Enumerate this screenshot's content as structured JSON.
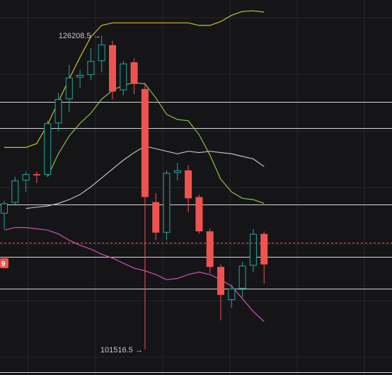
{
  "chart_data": {
    "type": "candlestick",
    "price_range": [
      99500,
      129000
    ],
    "colors": {
      "up": "#26a69a",
      "down": "#ef5350",
      "background": "#151518",
      "grid": "#26262b",
      "level_line": "#d9d9d9",
      "current_price_line": "#ef5350",
      "upper_band": "#c9c034",
      "short_ma": "#8bbf45",
      "mid_ma": "#bdbdbd",
      "lower_band": "#d44fb4"
    },
    "candles": [
      {
        "o": 112200,
        "h": 113200,
        "l": 111000,
        "c": 113000
      },
      {
        "o": 113050,
        "h": 115100,
        "l": 112900,
        "c": 114800
      },
      {
        "o": 114800,
        "h": 115500,
        "l": 113900,
        "c": 115300
      },
      {
        "o": 115300,
        "h": 115500,
        "l": 114600,
        "c": 115200
      },
      {
        "o": 115250,
        "h": 119500,
        "l": 115100,
        "c": 119300
      },
      {
        "o": 119300,
        "h": 121700,
        "l": 118700,
        "c": 121200
      },
      {
        "o": 121200,
        "h": 123900,
        "l": 120200,
        "c": 122900
      },
      {
        "o": 122900,
        "h": 123500,
        "l": 122100,
        "c": 123100
      },
      {
        "o": 123100,
        "h": 125200,
        "l": 122700,
        "c": 124200
      },
      {
        "o": 124200,
        "h": 126208.5,
        "l": 123300,
        "c": 125500
      },
      {
        "o": 125450,
        "h": 125800,
        "l": 121200,
        "c": 121800
      },
      {
        "o": 121900,
        "h": 124200,
        "l": 121500,
        "c": 124000
      },
      {
        "o": 124100,
        "h": 124400,
        "l": 121600,
        "c": 122400
      },
      {
        "o": 122000,
        "h": 122500,
        "l": 101516.5,
        "c": 113500
      },
      {
        "o": 113100,
        "h": 113800,
        "l": 110100,
        "c": 110700
      },
      {
        "o": 110700,
        "h": 115600,
        "l": 110100,
        "c": 115400
      },
      {
        "o": 115400,
        "h": 116200,
        "l": 114800,
        "c": 115600
      },
      {
        "o": 115600,
        "h": 116000,
        "l": 112300,
        "c": 113400
      },
      {
        "o": 113500,
        "h": 113700,
        "l": 110600,
        "c": 110800
      },
      {
        "o": 110800,
        "h": 111000,
        "l": 107500,
        "c": 108000
      },
      {
        "o": 108000,
        "h": 108200,
        "l": 103800,
        "c": 105800
      },
      {
        "o": 105400,
        "h": 106600,
        "l": 104800,
        "c": 106300
      },
      {
        "o": 106300,
        "h": 108400,
        "l": 105600,
        "c": 108100
      },
      {
        "o": 108100,
        "h": 111000,
        "l": 107600,
        "c": 110600
      },
      {
        "o": 110600,
        "h": 110800,
        "l": 106700,
        "c": 108200
      }
    ],
    "indicators": [
      {
        "key": "upper_band",
        "values": [
          117400,
          117400,
          117400,
          117700,
          119200,
          121000,
          122800,
          124500,
          126100,
          127000,
          127200,
          127200,
          127200,
          127200,
          127200,
          127200,
          127200,
          127200,
          127000,
          127000,
          127300,
          127800,
          128100,
          128150,
          128050
        ]
      },
      {
        "key": "short_ma",
        "values": null,
        "y_series": [
          null,
          null,
          null,
          null,
          115100,
          116900,
          118300,
          119300,
          120100,
          121200,
          121900,
          122300,
          122500,
          122400,
          121300,
          120000,
          119600,
          119500,
          118400,
          116800,
          114900,
          113900,
          113400,
          113300,
          113000
        ]
      },
      {
        "key": "mid_ma",
        "values": [
          null,
          null,
          112600,
          112700,
          112800,
          113000,
          113300,
          113700,
          114300,
          115000,
          115700,
          116400,
          117000,
          117500,
          117300,
          117100,
          116900,
          117100,
          117000,
          117100,
          117000,
          116900,
          116700,
          116500,
          115900
        ]
      },
      {
        "key": "lower_band",
        "values": [
          110900,
          111100,
          111100,
          111000,
          110900,
          110600,
          110100,
          109700,
          109400,
          109000,
          108700,
          108300,
          107900,
          107700,
          107400,
          107000,
          107100,
          107400,
          107600,
          107400,
          107000,
          106500,
          105500,
          104500,
          103700
        ]
      }
    ],
    "levels": [
      121000,
      118900,
      112900,
      108800,
      106300,
      99700
    ],
    "current_price": 109900,
    "annotations": {
      "high_label": "126208.5 →",
      "low_label": "101516.5 →",
      "price_badge": "9"
    },
    "grid": true
  }
}
